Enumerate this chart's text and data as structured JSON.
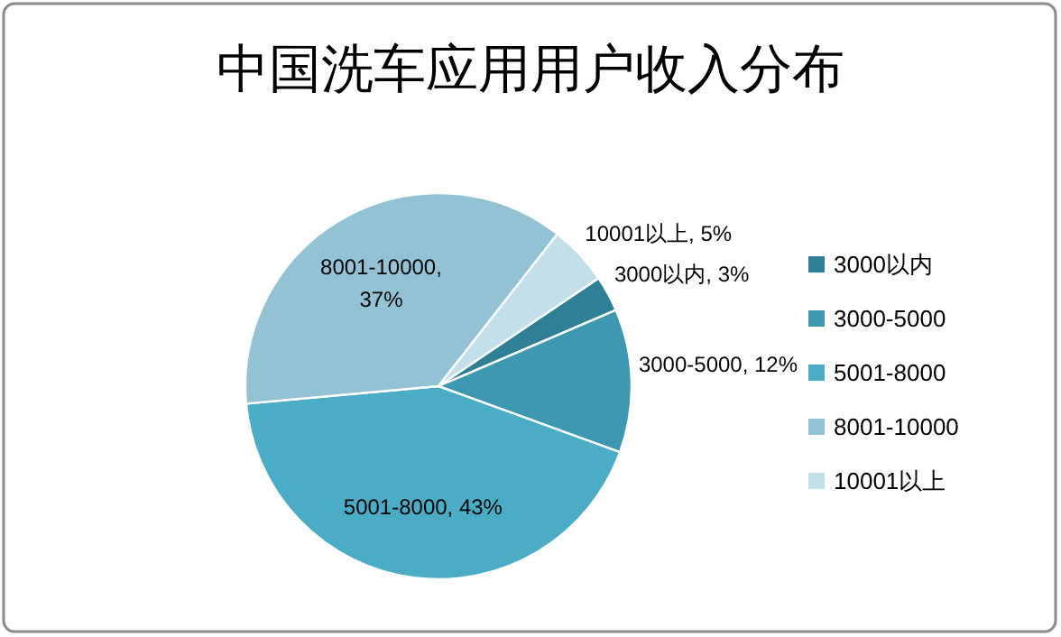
{
  "chart_data": {
    "type": "pie",
    "title": "中国洗车应用用户收入分布",
    "categories": [
      "3000以内",
      "3000-5000",
      "5001-8000",
      "8001-10000",
      "10001以上"
    ],
    "values": [
      3,
      12,
      43,
      37,
      5
    ],
    "colors": [
      "#2f7f96",
      "#3e98b2",
      "#4bacc6",
      "#93c2d5",
      "#c3dfea"
    ],
    "value_labels": [
      "3000以内, 3%",
      "3000-5000, 12%",
      "5001-8000, 43%",
      "8001-10000,\n37%",
      "10001以上, 5%"
    ],
    "legend": "right"
  }
}
